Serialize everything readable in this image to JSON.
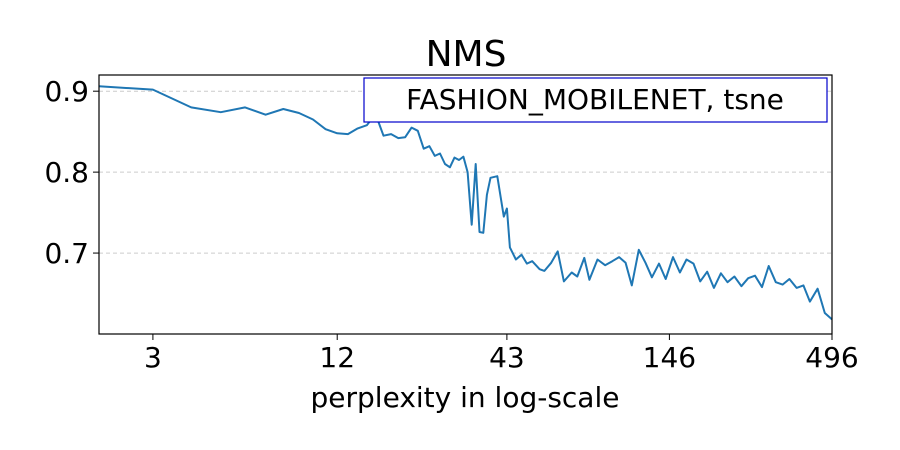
{
  "chart_data": {
    "type": "line",
    "title": "NMS",
    "xlabel": "perplexity in log-scale",
    "ylabel": "",
    "x_scale": "log",
    "xlim": [
      2,
      496
    ],
    "ylim": [
      0.6,
      0.92
    ],
    "x_ticks": [
      3,
      12,
      43,
      146,
      496
    ],
    "x_tick_labels": [
      "3",
      "12",
      "43",
      "146",
      "496"
    ],
    "y_ticks": [
      0.7,
      0.8,
      0.9
    ],
    "y_tick_labels": [
      "0.7",
      "0.8",
      "0.9"
    ],
    "grid": "horizontal dashed",
    "legend_text": "FASHION_MOBILENET, tsne",
    "legend_position": "top-right",
    "line_color": "#1f77b4",
    "legend_border_color": "#0000cc",
    "series": [
      {
        "x": [
          2,
          3,
          4,
          5,
          6,
          7,
          8,
          9,
          10,
          11,
          12,
          13,
          14,
          15,
          16,
          17,
          18,
          19,
          20,
          21,
          22,
          23,
          24,
          25,
          26,
          27,
          28,
          29,
          30,
          31,
          32,
          33,
          34,
          35,
          36,
          37,
          38,
          40,
          42,
          43,
          44,
          46,
          48,
          50,
          52,
          55,
          57,
          60,
          63,
          66,
          70,
          73,
          77,
          80,
          85,
          90,
          95,
          100,
          105,
          110,
          116,
          122,
          128,
          135,
          142,
          150,
          158,
          166,
          175,
          184,
          194,
          204,
          215,
          226,
          238,
          251,
          264,
          278,
          293,
          308,
          325,
          342,
          360,
          380,
          400,
          420,
          445,
          470,
          496
        ],
        "y": [
          0.906,
          0.902,
          0.88,
          0.874,
          0.88,
          0.871,
          0.878,
          0.873,
          0.865,
          0.853,
          0.848,
          0.847,
          0.854,
          0.858,
          0.872,
          0.845,
          0.847,
          0.842,
          0.843,
          0.855,
          0.851,
          0.829,
          0.832,
          0.82,
          0.823,
          0.81,
          0.806,
          0.818,
          0.815,
          0.819,
          0.8,
          0.735,
          0.81,
          0.726,
          0.725,
          0.772,
          0.793,
          0.795,
          0.745,
          0.755,
          0.707,
          0.692,
          0.698,
          0.687,
          0.69,
          0.68,
          0.678,
          0.688,
          0.702,
          0.665,
          0.676,
          0.671,
          0.694,
          0.667,
          0.692,
          0.685,
          0.69,
          0.695,
          0.688,
          0.66,
          0.704,
          0.688,
          0.67,
          0.687,
          0.668,
          0.695,
          0.676,
          0.692,
          0.687,
          0.665,
          0.677,
          0.657,
          0.675,
          0.664,
          0.671,
          0.659,
          0.669,
          0.672,
          0.658,
          0.684,
          0.664,
          0.661,
          0.668,
          0.657,
          0.66,
          0.64,
          0.656,
          0.626,
          0.618
        ]
      }
    ]
  }
}
